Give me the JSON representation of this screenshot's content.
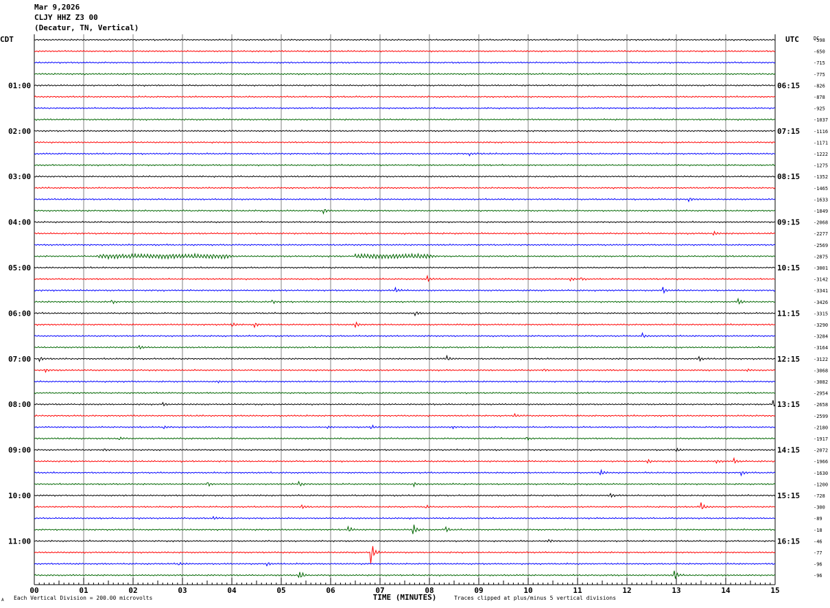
{
  "header": {
    "date": "Mar 9,2026",
    "station": "CLJY HHZ Z3 00",
    "location": "(Decatur, TN, Vertical)"
  },
  "left_tz": "CDT",
  "right_tz": "UTC",
  "dc_label": "DC",
  "footer": {
    "scale_note": "Each Vertical Division =  200.00 microvolts",
    "xlabel": "TIME (MINUTES)",
    "clip_note": "Traces clipped at plus/minus 5 vertical divisions",
    "corner_mark": "A"
  },
  "colors": {
    "trace_cycle": [
      "#000000",
      "#ff0000",
      "#0000ff",
      "#006600"
    ],
    "grid": "#808080"
  },
  "chart_data": {
    "type": "line",
    "title": "CLJY HHZ Z3 00",
    "xlabel": "TIME (MINUTES)",
    "xlim": [
      0,
      15
    ],
    "x_ticks": [
      "00",
      "01",
      "02",
      "03",
      "04",
      "05",
      "06",
      "07",
      "08",
      "09",
      "10",
      "11",
      "12",
      "13",
      "14",
      "15"
    ],
    "left_hour_labels": [
      {
        "row": 4,
        "label": "01:00"
      },
      {
        "row": 8,
        "label": "02:00"
      },
      {
        "row": 12,
        "label": "03:00"
      },
      {
        "row": 16,
        "label": "04:00"
      },
      {
        "row": 20,
        "label": "05:00"
      },
      {
        "row": 24,
        "label": "06:00"
      },
      {
        "row": 28,
        "label": "07:00"
      },
      {
        "row": 32,
        "label": "08:00"
      },
      {
        "row": 36,
        "label": "09:00"
      },
      {
        "row": 40,
        "label": "10:00"
      },
      {
        "row": 44,
        "label": "11:00"
      }
    ],
    "right_hour_labels": [
      {
        "row": 4,
        "label": "06:15"
      },
      {
        "row": 8,
        "label": "07:15"
      },
      {
        "row": 12,
        "label": "08:15"
      },
      {
        "row": 16,
        "label": "09:15"
      },
      {
        "row": 20,
        "label": "10:15"
      },
      {
        "row": 24,
        "label": "11:15"
      },
      {
        "row": 28,
        "label": "12:15"
      },
      {
        "row": 32,
        "label": "13:15"
      },
      {
        "row": 36,
        "label": "14:15"
      },
      {
        "row": 40,
        "label": "15:15"
      },
      {
        "row": 44,
        "label": "16:15"
      }
    ],
    "dc_offsets": [
      "-598",
      "-650",
      "-715",
      "-775",
      "-826",
      "-878",
      "-925",
      "-1037",
      "-1116",
      "-1171",
      "-1222",
      "-1275",
      "-1352",
      "-1465",
      "-1633",
      "-1849",
      "-2068",
      "-2277",
      "-2569",
      "-2875",
      "-3001",
      "-3142",
      "-3341",
      "-3426",
      "-3315",
      "-3290",
      "-3284",
      "-3164",
      "-3122",
      "-3068",
      "-3082",
      "-2954",
      "-2658",
      "-2599",
      "-2180",
      "-1917",
      "-2072",
      "-1966",
      "-1630",
      "-1200",
      "-728",
      "-300",
      "-89",
      "-18",
      "-46",
      "-77",
      "-96",
      "-96"
    ],
    "trace_count": 48,
    "events": [
      {
        "row": 10,
        "minute": 8.8,
        "amp": 3
      },
      {
        "row": 14,
        "minute": 13.25,
        "amp": 4
      },
      {
        "row": 15,
        "minute": 5.85,
        "amp": 4
      },
      {
        "row": 17,
        "minute": 13.75,
        "amp": 4
      },
      {
        "row": 19,
        "minute": 1.3,
        "amp": 3,
        "dur": 2.6
      },
      {
        "row": 19,
        "minute": 6.5,
        "amp": 3,
        "dur": 1.5
      },
      {
        "row": 21,
        "minute": 7.95,
        "amp": 6
      },
      {
        "row": 21,
        "minute": 10.85,
        "amp": 4
      },
      {
        "row": 21,
        "minute": 11.05,
        "amp": 4
      },
      {
        "row": 22,
        "minute": 7.3,
        "amp": 5
      },
      {
        "row": 22,
        "minute": 12.7,
        "amp": 9
      },
      {
        "row": 23,
        "minute": 1.55,
        "amp": 4
      },
      {
        "row": 23,
        "minute": 4.8,
        "amp": 5
      },
      {
        "row": 23,
        "minute": 14.25,
        "amp": 6
      },
      {
        "row": 24,
        "minute": 7.7,
        "amp": 4
      },
      {
        "row": 25,
        "minute": 4.0,
        "amp": 4
      },
      {
        "row": 25,
        "minute": 4.45,
        "amp": 5
      },
      {
        "row": 25,
        "minute": 6.5,
        "amp": 5
      },
      {
        "row": 26,
        "minute": 12.3,
        "amp": 5
      },
      {
        "row": 27,
        "minute": 2.1,
        "amp": 6
      },
      {
        "row": 28,
        "minute": 0.1,
        "amp": 5
      },
      {
        "row": 28,
        "minute": 8.35,
        "amp": 4
      },
      {
        "row": 28,
        "minute": 13.45,
        "amp": 4
      },
      {
        "row": 29,
        "minute": 0.2,
        "amp": 4
      },
      {
        "row": 29,
        "minute": 10.3,
        "amp": 3
      },
      {
        "row": 29,
        "minute": 14.4,
        "amp": 3
      },
      {
        "row": 30,
        "minute": 3.7,
        "amp": 3
      },
      {
        "row": 32,
        "minute": 2.6,
        "amp": 3
      },
      {
        "row": 32,
        "minute": 14.95,
        "amp": 7
      },
      {
        "row": 33,
        "minute": 9.7,
        "amp": 4
      },
      {
        "row": 34,
        "minute": 2.6,
        "amp": 3
      },
      {
        "row": 34,
        "minute": 5.9,
        "amp": 3
      },
      {
        "row": 34,
        "minute": 6.8,
        "amp": 4
      },
      {
        "row": 34,
        "minute": 8.45,
        "amp": 3
      },
      {
        "row": 35,
        "minute": 1.7,
        "amp": 3
      },
      {
        "row": 35,
        "minute": 9.95,
        "amp": 3
      },
      {
        "row": 36,
        "minute": 1.4,
        "amp": 3
      },
      {
        "row": 36,
        "minute": 13.0,
        "amp": 4
      },
      {
        "row": 37,
        "minute": 12.4,
        "amp": 4
      },
      {
        "row": 37,
        "minute": 13.8,
        "amp": 4
      },
      {
        "row": 37,
        "minute": 14.15,
        "amp": 6
      },
      {
        "row": 38,
        "minute": 11.45,
        "amp": 7
      },
      {
        "row": 38,
        "minute": 14.3,
        "amp": 5
      },
      {
        "row": 39,
        "minute": 3.5,
        "amp": 4
      },
      {
        "row": 39,
        "minute": 5.35,
        "amp": 6
      },
      {
        "row": 39,
        "minute": 7.65,
        "amp": 6
      },
      {
        "row": 40,
        "minute": 11.65,
        "amp": 6
      },
      {
        "row": 41,
        "minute": 5.4,
        "amp": 4
      },
      {
        "row": 41,
        "minute": 7.9,
        "amp": 4
      },
      {
        "row": 41,
        "minute": 13.5,
        "amp": 8
      },
      {
        "row": 42,
        "minute": 3.6,
        "amp": 4
      },
      {
        "row": 43,
        "minute": 6.35,
        "amp": 5
      },
      {
        "row": 43,
        "minute": 7.65,
        "amp": 15
      },
      {
        "row": 43,
        "minute": 8.3,
        "amp": 7
      },
      {
        "row": 44,
        "minute": 10.4,
        "amp": 4
      },
      {
        "row": 45,
        "minute": 6.8,
        "amp": 26
      },
      {
        "row": 46,
        "minute": 2.9,
        "amp": 4
      },
      {
        "row": 46,
        "minute": 4.7,
        "amp": 4
      },
      {
        "row": 47,
        "minute": 5.35,
        "amp": 11
      },
      {
        "row": 47,
        "minute": 12.95,
        "amp": 10
      }
    ]
  }
}
